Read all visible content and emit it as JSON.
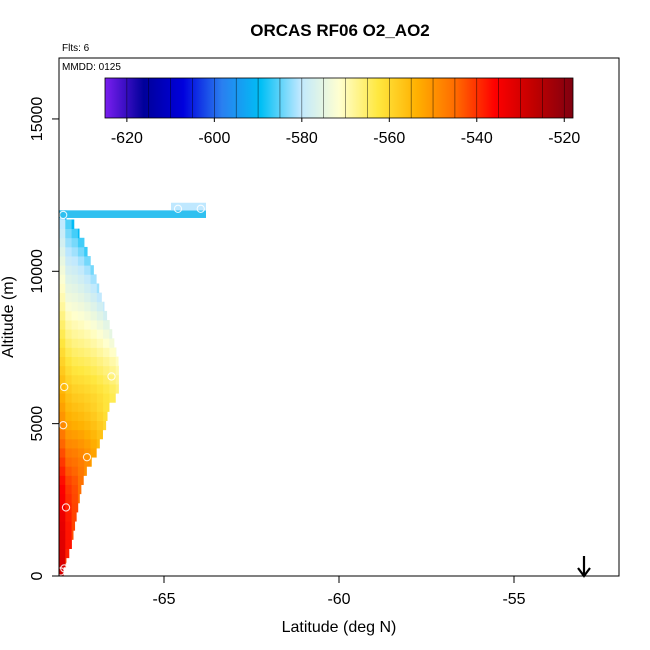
{
  "chart_data": {
    "type": "heatmap",
    "title": "ORCAS RF06 O2_AO2",
    "flights_label": "Flts: 6",
    "date_label": "MMDD: 0125",
    "xlabel": "Latitude (deg N)",
    "ylabel": "Altitude (m)",
    "xlim": [
      -68.0,
      -52.0
    ],
    "ylim": [
      0,
      17000
    ],
    "x_ticks": [
      -65,
      -60,
      -55
    ],
    "y_ticks": [
      0,
      5000,
      10000,
      15000
    ],
    "x_tick_labels": [
      "-65",
      "-60",
      "-55"
    ],
    "y_tick_labels": [
      "0",
      "5000",
      "10000",
      "15000"
    ],
    "colorbar": {
      "min": -625,
      "max": -518,
      "ticks": [
        -620,
        -600,
        -580,
        -560,
        -540,
        -520
      ],
      "tick_labels": [
        "-620",
        "-600",
        "-580",
        "-560",
        "-540",
        "-520"
      ],
      "colors": [
        "#7a1ef0",
        "#00009a",
        "#0000dd",
        "#2a7ff0",
        "#00bff5",
        "#bfe8ff",
        "#ffffd0",
        "#ffe840",
        "#ffb000",
        "#ff6a00",
        "#ff0000",
        "#c00000",
        "#800010"
      ]
    },
    "grid": false,
    "profile_points": [
      {
        "alt": 12000,
        "lat": -67.92
      },
      {
        "alt": 11600,
        "lat": -67.6
      },
      {
        "alt": 11000,
        "lat": -67.3
      },
      {
        "alt": 10000,
        "lat": -67.0
      },
      {
        "alt": 9000,
        "lat": -66.75
      },
      {
        "alt": 8000,
        "lat": -66.5
      },
      {
        "alt": 7000,
        "lat": -66.3
      },
      {
        "alt": 6000,
        "lat": -66.3
      },
      {
        "alt": 5500,
        "lat": -66.6
      },
      {
        "alt": 5000,
        "lat": -66.65
      },
      {
        "alt": 4500,
        "lat": -66.8
      },
      {
        "alt": 4000,
        "lat": -66.95
      },
      {
        "alt": 3500,
        "lat": -67.2
      },
      {
        "alt": 3000,
        "lat": -67.35
      },
      {
        "alt": 2000,
        "lat": -67.5
      },
      {
        "alt": 1000,
        "lat": -67.65
      },
      {
        "alt": 0,
        "lat": -67.92
      }
    ],
    "value_profile": [
      {
        "alt": 0,
        "value": -534
      },
      {
        "alt": 1500,
        "value": -536
      },
      {
        "alt": 3000,
        "value": -540
      },
      {
        "alt": 4000,
        "value": -546
      },
      {
        "alt": 5000,
        "value": -553
      },
      {
        "alt": 6000,
        "value": -558
      },
      {
        "alt": 7000,
        "value": -563
      },
      {
        "alt": 8000,
        "value": -568
      },
      {
        "alt": 9000,
        "value": -573
      },
      {
        "alt": 10000,
        "value": -577
      },
      {
        "alt": 11000,
        "value": -582
      },
      {
        "alt": 12000,
        "value": -586
      }
    ],
    "top_band": {
      "lat_min": -68.0,
      "lat_max": -63.8,
      "alt_min": 11750,
      "alt_max": 12000,
      "value": -590
    },
    "circles": [
      {
        "lat": -67.88,
        "alt": 11850
      },
      {
        "lat": -64.6,
        "alt": 12050
      },
      {
        "lat": -63.95,
        "alt": 12050
      },
      {
        "lat": -65.25,
        "alt": 11550
      },
      {
        "lat": -66.5,
        "alt": 6550
      },
      {
        "lat": -67.85,
        "alt": 6200
      },
      {
        "lat": -67.88,
        "alt": 4950
      },
      {
        "lat": -67.2,
        "alt": 3900
      },
      {
        "lat": -67.8,
        "alt": 2250
      },
      {
        "lat": -67.7,
        "alt": 350
      },
      {
        "lat": -67.85,
        "alt": 250
      },
      {
        "lat": -67.95,
        "alt": 150
      }
    ],
    "arrow_marker_lat": -53.0
  }
}
